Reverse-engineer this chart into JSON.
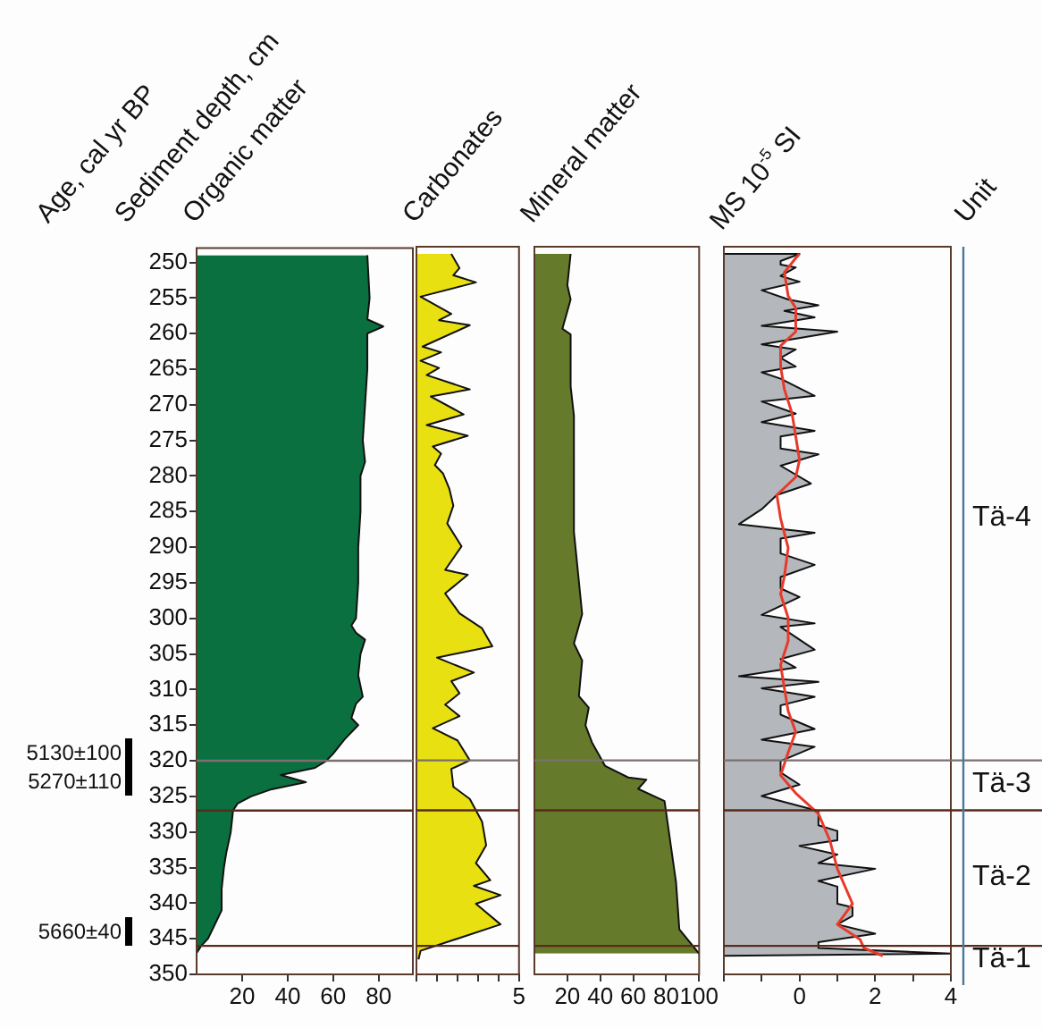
{
  "chart_data": [
    {
      "type": "area",
      "orientation": "horizontal",
      "title": "Organic matter",
      "ylabel": "Sediment depth, cm",
      "annotations": [
        "Age, cal yr BP",
        "5130±100",
        "5270±110",
        "5660±40"
      ],
      "series": [
        {
          "color": "#0b7040",
          "x": [
            249,
            255,
            258,
            259,
            260,
            265,
            270,
            275,
            278,
            280,
            285,
            290,
            295,
            300,
            301,
            302,
            303,
            305,
            308,
            311,
            312,
            314,
            315,
            317,
            319,
            320,
            321,
            322,
            323,
            324,
            325,
            326,
            327,
            330,
            333,
            335,
            338,
            341,
            343,
            345,
            346,
            347
          ],
          "values": [
            75,
            76,
            75,
            82,
            75,
            75,
            74,
            73,
            74,
            72,
            72,
            71,
            71,
            70,
            68,
            70,
            74,
            72,
            71,
            73,
            70,
            68,
            71,
            65,
            60,
            57,
            52,
            37,
            48,
            33,
            24,
            18,
            16,
            15,
            13,
            12,
            11,
            11,
            8,
            5,
            2,
            0
          ]
        }
      ],
      "xlim": [
        0,
        95
      ],
      "xticks": [
        20,
        40,
        60,
        80
      ],
      "ylim": [
        350,
        248
      ],
      "yticks": [
        250,
        255,
        260,
        265,
        270,
        275,
        280,
        285,
        290,
        295,
        300,
        305,
        310,
        315,
        320,
        325,
        330,
        335,
        340,
        345,
        350
      ],
      "ref_lines": [
        {
          "axis": "y",
          "value": 320,
          "color": "#7a7070"
        },
        {
          "axis": "y",
          "value": 327,
          "color": "#5a2a1a"
        },
        {
          "axis": "y",
          "value": 346,
          "color": "#5a2a1a"
        }
      ]
    },
    {
      "type": "area",
      "orientation": "horizontal",
      "title": "Carbonates",
      "tick_labels": "x",
      "series": [
        {
          "color": "#e8e010",
          "x": [
            249,
            251,
            252,
            253,
            255,
            257.4,
            258.3,
            259,
            262,
            262.8,
            264,
            265,
            266,
            268,
            269,
            271.5,
            273,
            274.5,
            276,
            277,
            278.6,
            279.8,
            281.9,
            284.3,
            286.8,
            290,
            293.3,
            294,
            296.6,
            299.4,
            301.5,
            304,
            305.6,
            307.7,
            308.9,
            310.6,
            312.2,
            313.8,
            315.5,
            317.2,
            320,
            321.2,
            323.7,
            325.4,
            328.6,
            331.9,
            334.4,
            336.8,
            337.6,
            338.9,
            340.1,
            343,
            346.7,
            347.9
          ],
          "values": [
            1.7,
            2.1,
            1.8,
            2.9,
            0.2,
            1.7,
            1.1,
            2.6,
            0.3,
            1.2,
            0.2,
            1.1,
            0.5,
            2.6,
            0.7,
            2.3,
            0.5,
            2.5,
            0.8,
            1.2,
            0.9,
            1.3,
            1.6,
            1.8,
            1.5,
            2.2,
            1.4,
            2.5,
            1.4,
            2.1,
            3.2,
            3.7,
            1,
            2.8,
            1.7,
            2.1,
            1.4,
            2.1,
            0.8,
            2,
            2.6,
            1.7,
            1.8,
            2.6,
            3.2,
            3.4,
            2.9,
            3.6,
            2.8,
            4.1,
            2.9,
            4.1,
            0.2,
            0.1
          ]
        }
      ],
      "xlim": [
        0,
        5
      ],
      "xticks": [
        {
          "value": 0,
          "label": null
        },
        {
          "value": 1,
          "label": null
        },
        {
          "value": 2,
          "label": null
        },
        {
          "value": 3,
          "label": null
        },
        {
          "value": 4,
          "label": null
        },
        5
      ],
      "ylim": [
        350,
        248
      ],
      "ref_lines": [
        {
          "axis": "y",
          "value": 320,
          "color": "#7a7070"
        },
        {
          "axis": "y",
          "value": 327,
          "color": "#5a2a1a"
        },
        {
          "axis": "y",
          "value": 346,
          "color": "#5a2a1a"
        }
      ]
    },
    {
      "type": "area",
      "orientation": "horizontal",
      "title": "Mineral matter",
      "tick_labels": "x",
      "series": [
        {
          "color": "#667a2c",
          "x": [
            249,
            253.4,
            255.4,
            259.5,
            260.3,
            267.6,
            271.7,
            288,
            299.5,
            303.6,
            306,
            311,
            312.6,
            315.1,
            317.5,
            320.8,
            322.4,
            322.7,
            324,
            325.7,
            330.6,
            337.1,
            343.7,
            347.1
          ],
          "values": [
            22,
            20,
            22,
            17,
            22,
            22,
            24,
            24,
            29,
            24,
            29,
            27,
            33,
            31,
            35,
            43,
            57,
            68,
            63,
            79,
            82,
            86,
            88,
            100
          ]
        }
      ],
      "xlim": [
        0,
        100
      ],
      "xticks": [
        20,
        40,
        60,
        80,
        100
      ],
      "ylim": [
        350,
        248
      ],
      "ref_lines": [
        {
          "axis": "y",
          "value": 320,
          "color": "#7a7070"
        },
        {
          "axis": "y",
          "value": 327,
          "color": "#5a2a1a"
        },
        {
          "axis": "y",
          "value": 346,
          "color": "#5a2a1a"
        }
      ]
    },
    {
      "type": "area",
      "orientation": "horizontal",
      "title": "MS 10$^{-5}$ SI",
      "tick_labels": "x",
      "annotations": [
        "Unit",
        "Tä-4",
        "Tä-3",
        "Tä-2",
        "Tä-1"
      ],
      "series": [
        {
          "color": "#b4b8bc",
          "x": [
            249,
            249,
            250,
            250.5,
            250.9,
            252.1,
            252.9,
            254.1,
            255.4,
            256.2,
            257,
            257.9,
            259.1,
            259.9,
            261.7,
            262.4,
            263.6,
            264.8,
            265.6,
            266.5,
            268.9,
            269.7,
            271.4,
            272.6,
            273.8,
            274.6,
            276.3,
            277.1,
            278.7,
            281.2,
            282.8,
            284.8,
            286.9,
            288.1,
            288.9,
            291,
            292.6,
            294.3,
            295.9,
            297.1,
            299.6,
            300.8,
            301.3,
            304.5,
            305.8,
            307,
            308.2,
            309,
            309.9,
            311.1,
            312.3,
            313.6,
            315.6,
            317.1,
            318.1,
            320.1,
            321.7,
            323.4,
            325,
            327.1,
            329.1,
            329.9,
            331.2,
            332,
            333.2,
            334.4,
            335.2,
            336.9,
            337.7,
            340.1,
            340.6,
            341.8,
            343,
            344.3,
            345.5,
            346.3,
            347.1,
            347.4
          ],
          "values": [
            -2,
            0,
            -0.5,
            -0.5,
            -0.1,
            -0.5,
            0,
            -1,
            -0.3,
            0.5,
            -0.4,
            0.4,
            -1,
            1,
            -1,
            -0.1,
            -0.5,
            -0.1,
            -1,
            -0.5,
            0.4,
            -1,
            -0.1,
            -1,
            0.4,
            -0.5,
            -0.5,
            0.5,
            -0.5,
            0.3,
            -0.6,
            -1,
            -1.6,
            0.4,
            -0.5,
            -0.5,
            0.4,
            -0.5,
            -0.5,
            0,
            -1,
            0.4,
            -0.5,
            0.4,
            -0.5,
            -0.1,
            -1.6,
            0.5,
            -1,
            0.4,
            -0.5,
            -0.5,
            0.4,
            -1,
            0.4,
            -0.5,
            -0.5,
            0,
            -1,
            0.5,
            0.5,
            1,
            1,
            0,
            1,
            0.5,
            2,
            0.5,
            1,
            1,
            1.4,
            1.4,
            1,
            2,
            0.5,
            0.5,
            4,
            -2
          ]
        },
        {
          "type": "line",
          "color": "#e83a2a",
          "x": [
            249,
            249.6,
            251.6,
            254.9,
            256.6,
            259.9,
            261.9,
            264.8,
            268,
            271.3,
            274.6,
            277.9,
            280.3,
            282.8,
            286.1,
            290.2,
            294.2,
            296.7,
            300,
            303.3,
            306.6,
            309.9,
            313.1,
            316,
            318.9,
            322.1,
            324.6,
            327.5,
            331.2,
            335.2,
            340.1,
            343,
            345.1,
            346.3,
            347.4
          ],
          "values": [
            0,
            -0.1,
            -0.4,
            -0.3,
            -0.1,
            -0.1,
            -0.5,
            -0.5,
            -0.4,
            -0.2,
            -0.1,
            0,
            -0.1,
            -0.6,
            -0.5,
            -0.3,
            -0.4,
            -0.5,
            -0.3,
            -0.3,
            -0.5,
            -0.4,
            -0.3,
            -0.1,
            -0.3,
            -0.5,
            -0.1,
            0.5,
            0.8,
            1,
            1.4,
            1,
            1.6,
            1.7,
            2.2
          ]
        }
      ],
      "xlim": [
        -2,
        4
      ],
      "xticks": [
        {
          "value": -2,
          "label": null
        },
        {
          "value": -1,
          "label": null
        },
        0,
        {
          "value": 1,
          "label": null
        },
        2,
        {
          "value": 3,
          "label": null
        },
        4
      ],
      "ylim": [
        350,
        248
      ],
      "ref_lines": [
        {
          "axis": "y",
          "value": 320,
          "color": "#7a7070"
        },
        {
          "axis": "y",
          "value": 327,
          "color": "#5a2a1a"
        },
        {
          "axis": "y",
          "value": 346,
          "color": "#5a2a1a"
        }
      ]
    }
  ]
}
